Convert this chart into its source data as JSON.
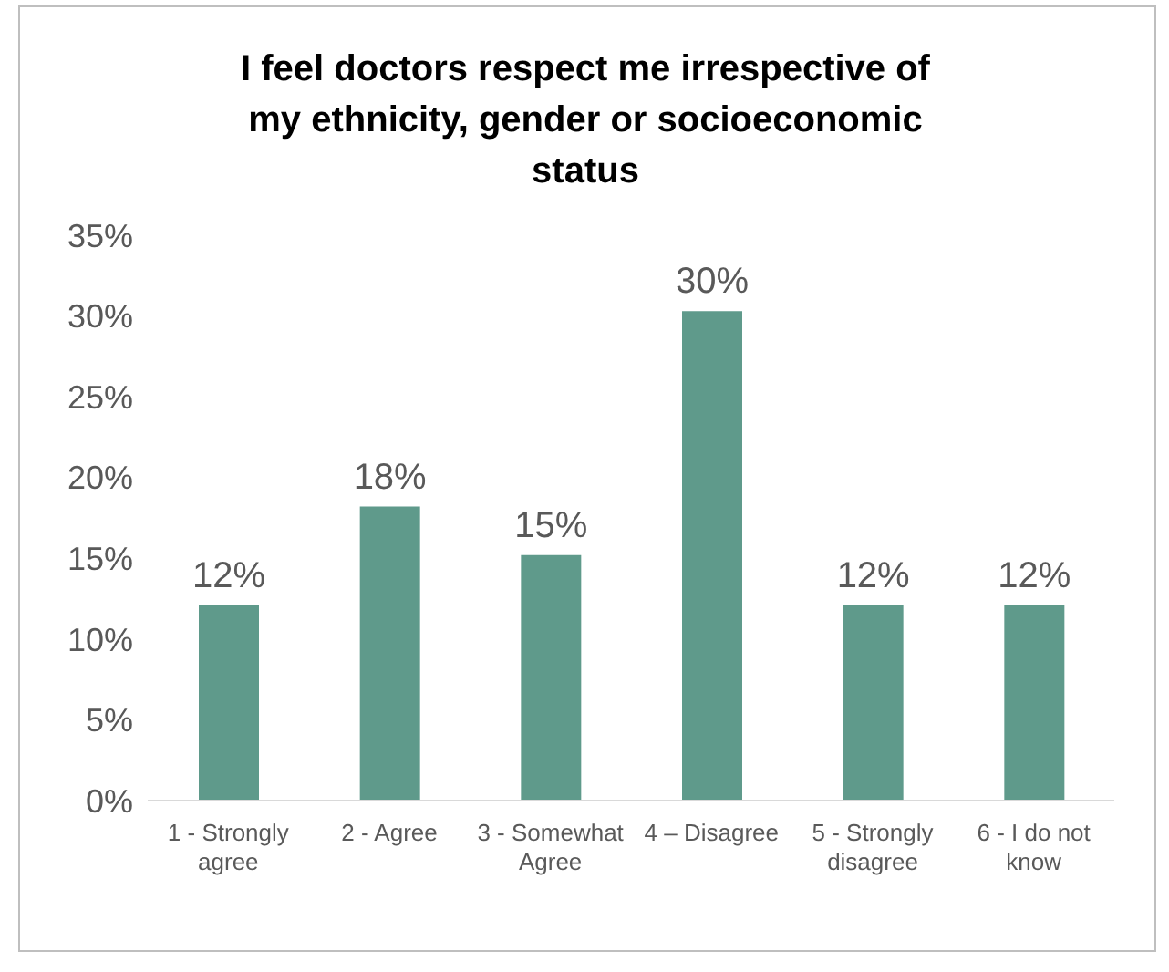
{
  "chart_data": {
    "type": "bar",
    "title": "I feel doctors respect me irrespective of my ethnicity, gender or socioeconomic status",
    "categories": [
      "1 - Strongly agree",
      "2 - Agree",
      "3 - Somewhat Agree",
      "4 – Disagree",
      "5 - Strongly disagree",
      "6 - I do not know"
    ],
    "values": [
      12.1,
      18.2,
      15.2,
      30.3,
      12.1,
      12.1
    ],
    "value_labels": [
      "12%",
      "18%",
      "15%",
      "30%",
      "12%",
      "12%"
    ],
    "color": "#5f9a8b",
    "ylim": [
      0,
      35
    ],
    "yticks": [
      {
        "value": 0,
        "label": "0%"
      },
      {
        "value": 5,
        "label": "5%"
      },
      {
        "value": 10,
        "label": "10%"
      },
      {
        "value": 15,
        "label": "15%"
      },
      {
        "value": 20,
        "label": "20%"
      },
      {
        "value": 25,
        "label": "25%"
      },
      {
        "value": 30,
        "label": "30%"
      },
      {
        "value": 35,
        "label": "35%"
      }
    ],
    "grid": false
  }
}
